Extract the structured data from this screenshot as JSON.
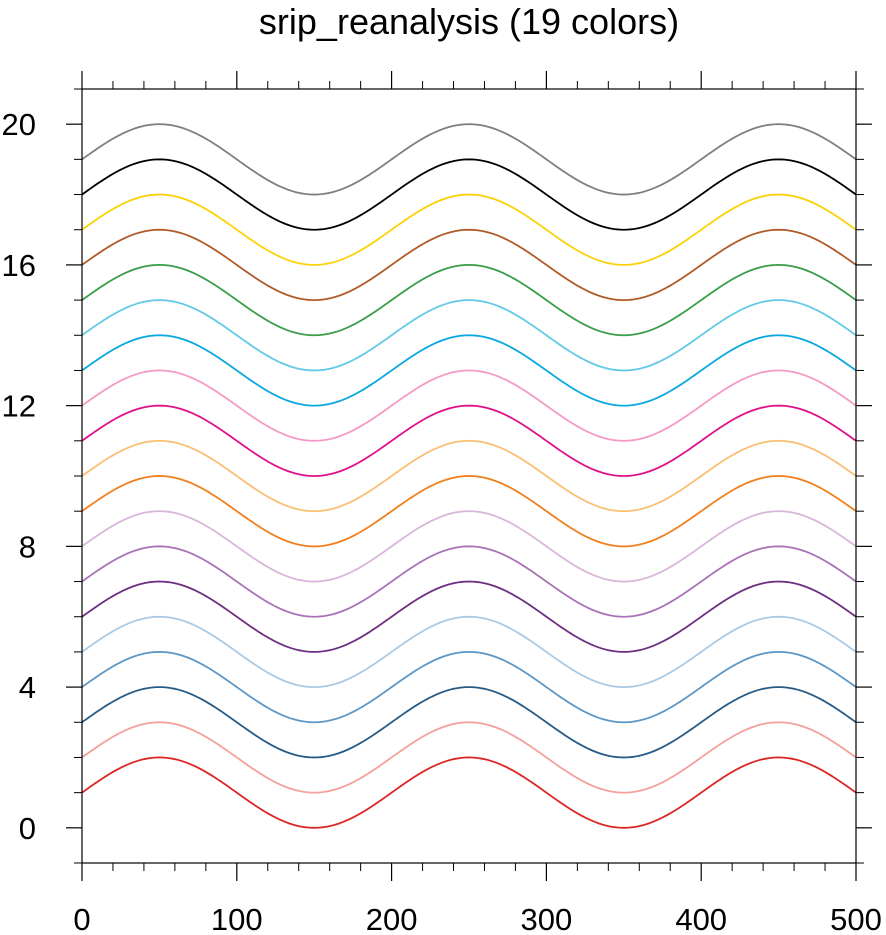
{
  "chart_data": {
    "type": "line",
    "title": "srip_reanalysis (19 colors)",
    "xlabel": "",
    "ylabel": "",
    "xlim": [
      0,
      500
    ],
    "ylim": [
      -1,
      21
    ],
    "x_ticks": [
      "0",
      "100",
      "200",
      "300",
      "400",
      "500"
    ],
    "y_ticks": [
      "0",
      "4",
      "8",
      "12",
      "16",
      "20"
    ],
    "grid": false,
    "legend": "none",
    "curve": {
      "function": "sine",
      "amplitude": 1,
      "period": 200,
      "peak_x": 50
    },
    "series": [
      {
        "offset": 1,
        "color": "#dc2626"
      },
      {
        "offset": 2,
        "color": "#f4a09c"
      },
      {
        "offset": 3,
        "color": "#255b86"
      },
      {
        "offset": 4,
        "color": "#5d97c5"
      },
      {
        "offset": 5,
        "color": "#aac9e4"
      },
      {
        "offset": 6,
        "color": "#6e2f80"
      },
      {
        "offset": 7,
        "color": "#a972b7"
      },
      {
        "offset": 8,
        "color": "#d8b7da"
      },
      {
        "offset": 9,
        "color": "#f07f1c"
      },
      {
        "offset": 10,
        "color": "#fbbf74"
      },
      {
        "offset": 11,
        "color": "#e0108a"
      },
      {
        "offset": 12,
        "color": "#f59ac7"
      },
      {
        "offset": 13,
        "color": "#09a8e0"
      },
      {
        "offset": 14,
        "color": "#62c9e6"
      },
      {
        "offset": 15,
        "color": "#3a9e48"
      },
      {
        "offset": 16,
        "color": "#b05a28"
      },
      {
        "offset": 17,
        "color": "#fad205"
      },
      {
        "offset": 18,
        "color": "#000000"
      },
      {
        "offset": 19,
        "color": "#7f7f7f"
      }
    ]
  }
}
